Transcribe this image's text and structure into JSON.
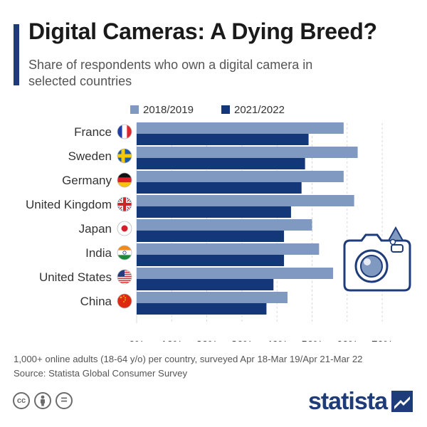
{
  "header": {
    "title": "Digital Cameras: A Dying Breed?",
    "subtitle": "Share of respondents who own a digital camera in selected countries"
  },
  "colors": {
    "accent": "#1f3c7a",
    "series_2018": "#8099c1",
    "series_2021": "#14377a"
  },
  "chart_data": {
    "type": "bar",
    "orientation": "horizontal",
    "categories": [
      "France",
      "Sweden",
      "Germany",
      "United Kingdom",
      "Japan",
      "India",
      "United States",
      "China"
    ],
    "series": [
      {
        "name": "2018/2019",
        "values": [
          59,
          63,
          59,
          62,
          50,
          52,
          56,
          43
        ]
      },
      {
        "name": "2021/2022",
        "values": [
          49,
          48,
          47,
          44,
          42,
          42,
          39,
          37
        ]
      }
    ],
    "xlim": [
      0,
      70
    ],
    "xticks": [
      "0%",
      "10%",
      "20%",
      "30%",
      "40%",
      "50%",
      "60%",
      "70%"
    ],
    "grid": "vertical",
    "legend": "top",
    "flag_icons": [
      "france-flag-icon",
      "sweden-flag-icon",
      "germany-flag-icon",
      "uk-flag-icon",
      "japan-flag-icon",
      "india-flag-icon",
      "usa-flag-icon",
      "china-flag-icon"
    ]
  },
  "footer": {
    "note": "1,000+ online adults (18-64 y/o) per country, surveyed Apr 18-Mar 19/Apr 21-Mar 22",
    "source": "Source: Statista Global Consumer Survey",
    "brand": "statista",
    "license_icons": [
      "creative-commons-icon",
      "attribution-icon",
      "no-derivatives-icon"
    ],
    "cc_label": "cc",
    "nd_label": "="
  }
}
